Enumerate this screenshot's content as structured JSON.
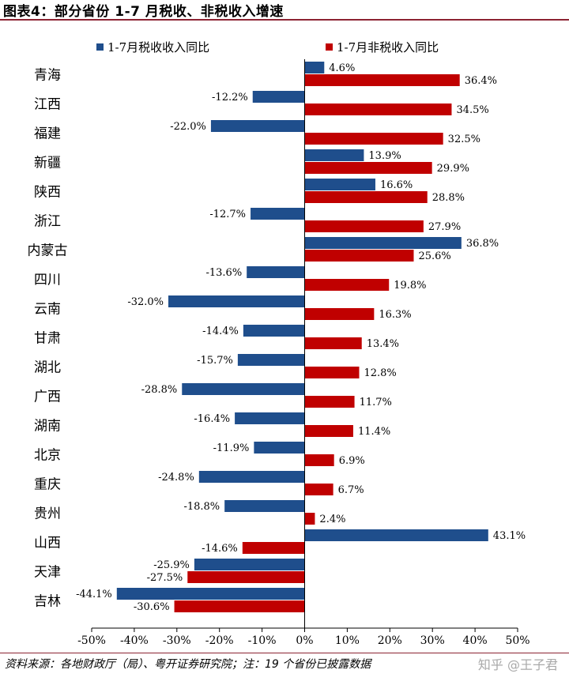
{
  "title": "图表4：部分省份 1-7 月税收、非税收入增速",
  "source": "资料来源：各地财政厅（局）、粤开证券研究院；注：19 个省份已披露数据",
  "credit": "知乎 @王子君",
  "colors": {
    "tax": "#1f4e8c",
    "nontax": "#c00000",
    "rule": "#8c2332"
  },
  "chart_data": {
    "type": "bar",
    "orientation": "horizontal",
    "categories": [
      "青海",
      "江西",
      "福建",
      "新疆",
      "陕西",
      "浙江",
      "内蒙古",
      "四川",
      "云南",
      "甘肃",
      "湖北",
      "广西",
      "湖南",
      "北京",
      "重庆",
      "贵州",
      "山西",
      "天津",
      "吉林"
    ],
    "series": [
      {
        "name": "1-7月税收收入同比",
        "values": [
          4.6,
          -12.2,
          -22.0,
          13.9,
          16.6,
          -12.7,
          36.8,
          -13.6,
          -32.0,
          -14.4,
          -15.7,
          -28.8,
          -16.4,
          -11.9,
          -24.8,
          -18.8,
          43.1,
          -25.9,
          -44.1
        ]
      },
      {
        "name": "1-7月非税收入同比",
        "values": [
          36.4,
          34.5,
          32.5,
          29.9,
          28.8,
          27.9,
          25.6,
          19.8,
          16.3,
          13.4,
          12.8,
          11.7,
          11.4,
          6.9,
          6.7,
          2.4,
          -14.6,
          -27.5,
          -30.6
        ]
      }
    ],
    "xlim": [
      -50,
      50
    ],
    "xticks": [
      "-50%",
      "-40%",
      "-30%",
      "-20%",
      "-10%",
      "0%",
      "10%",
      "20%",
      "30%",
      "40%",
      "50%"
    ],
    "grid": false,
    "legend_position": "top"
  }
}
